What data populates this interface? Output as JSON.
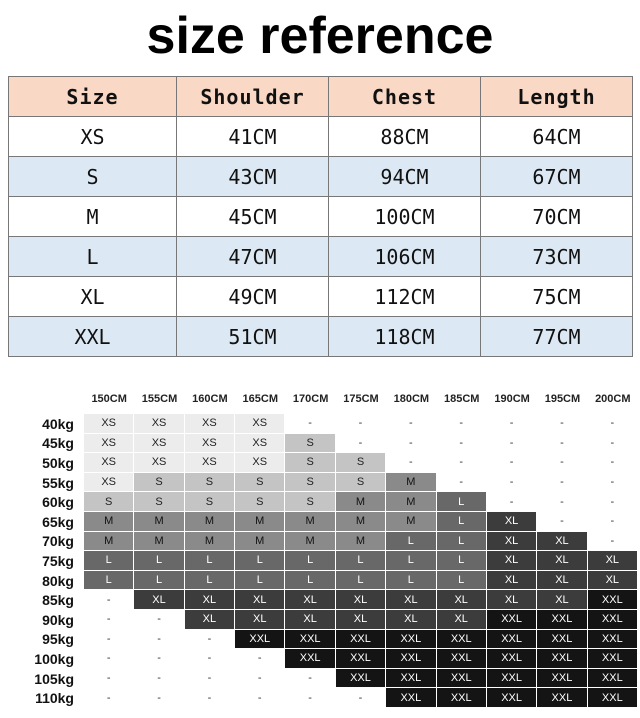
{
  "title": "size reference",
  "size_table": {
    "header": [
      "Size",
      "Shoulder",
      "Chest",
      "Length"
    ],
    "rows": [
      [
        "XS",
        "41CM",
        "88CM",
        "64CM"
      ],
      [
        "S",
        "43CM",
        "94CM",
        "67CM"
      ],
      [
        "M",
        "45CM",
        "100CM",
        "70CM"
      ],
      [
        "L",
        "47CM",
        "106CM",
        "73CM"
      ],
      [
        "XL",
        "49CM",
        "112CM",
        "75CM"
      ],
      [
        "XXL",
        "51CM",
        "118CM",
        "77CM"
      ]
    ]
  },
  "size_chart": {
    "heights": [
      "150CM",
      "155CM",
      "160CM",
      "165CM",
      "170CM",
      "175CM",
      "180CM",
      "185CM",
      "190CM",
      "195CM",
      "200CM"
    ],
    "weights": [
      "40kg",
      "45kg",
      "50kg",
      "55kg",
      "60kg",
      "65kg",
      "70kg",
      "75kg",
      "80kg",
      "85kg",
      "90kg",
      "95kg",
      "100kg",
      "105kg",
      "110kg"
    ],
    "rows": [
      [
        "XS",
        "XS",
        "XS",
        "XS",
        "-",
        "-",
        "-",
        "-",
        "-",
        "-",
        "-"
      ],
      [
        "XS",
        "XS",
        "XS",
        "XS",
        "S",
        "-",
        "-",
        "-",
        "-",
        "-",
        "-"
      ],
      [
        "XS",
        "XS",
        "XS",
        "XS",
        "S",
        "S",
        "-",
        "-",
        "-",
        "-",
        "-"
      ],
      [
        "XS",
        "S",
        "S",
        "S",
        "S",
        "S",
        "M",
        "-",
        "-",
        "-",
        "-"
      ],
      [
        "S",
        "S",
        "S",
        "S",
        "S",
        "M",
        "M",
        "L",
        "-",
        "-",
        "-"
      ],
      [
        "M",
        "M",
        "M",
        "M",
        "M",
        "M",
        "M",
        "L",
        "XL",
        "-",
        "-"
      ],
      [
        "M",
        "M",
        "M",
        "M",
        "M",
        "M",
        "L",
        "L",
        "XL",
        "XL",
        "-"
      ],
      [
        "L",
        "L",
        "L",
        "L",
        "L",
        "L",
        "L",
        "L",
        "XL",
        "XL",
        "XL"
      ],
      [
        "L",
        "L",
        "L",
        "L",
        "L",
        "L",
        "L",
        "L",
        "XL",
        "XL",
        "XL"
      ],
      [
        "-",
        "XL",
        "XL",
        "XL",
        "XL",
        "XL",
        "XL",
        "XL",
        "XL",
        "XL",
        "XXL"
      ],
      [
        "-",
        "-",
        "XL",
        "XL",
        "XL",
        "XL",
        "XL",
        "XL",
        "XXL",
        "XXL",
        "XXL"
      ],
      [
        "-",
        "-",
        "-",
        "XXL",
        "XXL",
        "XXL",
        "XXL",
        "XXL",
        "XXL",
        "XXL",
        "XXL"
      ],
      [
        "-",
        "-",
        "-",
        "-",
        "XXL",
        "XXL",
        "XXL",
        "XXL",
        "XXL",
        "XXL",
        "XXL"
      ],
      [
        "-",
        "-",
        "-",
        "-",
        "-",
        "XXL",
        "XXL",
        "XXL",
        "XXL",
        "XXL",
        "XXL"
      ],
      [
        "-",
        "-",
        "-",
        "-",
        "-",
        "-",
        "XXL",
        "XXL",
        "XXL",
        "XXL",
        "XXL"
      ]
    ]
  }
}
